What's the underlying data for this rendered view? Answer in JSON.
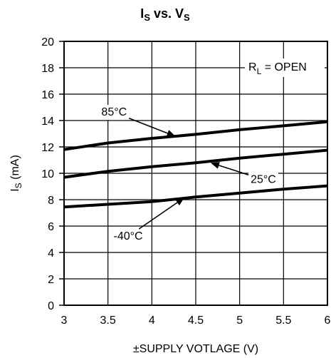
{
  "chart_data": {
    "type": "line",
    "title": {
      "main": "I",
      "main_sub": "S",
      "mid": " vs. V",
      "mid_sub": "S"
    },
    "xlabel": "±SUPPLY VOTLAGE (V)",
    "ylabel": {
      "main": "I",
      "sub": "S",
      "rest": " (mA)"
    },
    "xlim": [
      3,
      6
    ],
    "ylim": [
      0,
      20
    ],
    "x_ticks": [
      "3",
      "3.5",
      "4",
      "4.5",
      "5",
      "5.5",
      "6"
    ],
    "y_ticks": [
      "0",
      "2",
      "4",
      "6",
      "8",
      "10",
      "12",
      "14",
      "16",
      "18",
      "20"
    ],
    "grid": true,
    "legend": "none",
    "condition": {
      "main": "R",
      "sub": "L",
      "rest": " = OPEN"
    },
    "series": [
      {
        "name": "85°C",
        "x": [
          3,
          3.5,
          4,
          4.5,
          5,
          5.5,
          6
        ],
        "y": [
          11.8,
          12.3,
          12.65,
          12.95,
          13.3,
          13.6,
          13.9
        ]
      },
      {
        "name": "25°C",
        "x": [
          3,
          3.5,
          4,
          4.5,
          5,
          5.5,
          6
        ],
        "y": [
          9.7,
          10.15,
          10.5,
          10.8,
          11.15,
          11.45,
          11.75
        ]
      },
      {
        "name": "-40°C",
        "x": [
          3,
          3.5,
          4,
          4.5,
          5,
          5.5,
          6
        ],
        "y": [
          7.45,
          7.65,
          7.85,
          8.2,
          8.5,
          8.8,
          9.05
        ]
      }
    ],
    "annotations": [
      {
        "text": "85°C",
        "series": "85°C",
        "point_x": 4.27,
        "point_y": 12.8,
        "label_x": 3.57,
        "label_y": 14.6
      },
      {
        "text": "25°C",
        "series": "25°C",
        "point_x": 4.67,
        "point_y": 10.8,
        "label_x": 5.27,
        "label_y": 9.5
      },
      {
        "text": "-40°C",
        "series": "-40°C",
        "point_x": 4.37,
        "point_y": 8.15,
        "label_x": 3.73,
        "label_y": 5.2
      }
    ]
  }
}
